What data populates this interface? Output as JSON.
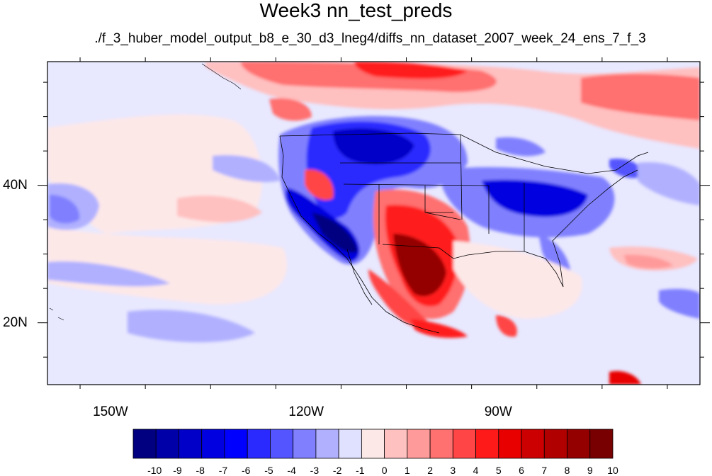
{
  "title": "Week3 nn_test_preds",
  "subtitle": "./f_3_huber_model_output_b8_e_30_d3_lneg4/diffs_nn_dataset_2007_week_24_ens_7_f_3",
  "map": {
    "lon_range": [
      -160,
      -60
    ],
    "lat_range": [
      11,
      58
    ],
    "lat_ticks": [
      {
        "value": 40,
        "label": "40N"
      },
      {
        "value": 20,
        "label": "20N"
      }
    ],
    "lon_ticks": [
      {
        "value": -150,
        "label": "150W"
      },
      {
        "value": -120,
        "label": "120W"
      },
      {
        "value": -90,
        "label": "90W"
      }
    ]
  },
  "colorbar": {
    "labels": [
      "-10",
      "-9",
      "-8",
      "-7",
      "-6",
      "-5",
      "-4",
      "-3",
      "-2",
      "-1",
      "0",
      "1",
      "2",
      "3",
      "4",
      "5",
      "6",
      "7",
      "8",
      "9",
      "10"
    ],
    "colors": [
      "#000080",
      "#0000a8",
      "#0000c8",
      "#0000e0",
      "#0000ff",
      "#2a2aff",
      "#5555ff",
      "#8080ff",
      "#b0b0ff",
      "#e0e0ff",
      "#fde8e8",
      "#ffc0c0",
      "#ff9a9a",
      "#ff7070",
      "#ff4545",
      "#ff1a1a",
      "#e80000",
      "#cc0000",
      "#b00000",
      "#940000",
      "#780000"
    ]
  },
  "colors": {
    "frame": "#000000",
    "background_field": "#e8e8ff"
  }
}
